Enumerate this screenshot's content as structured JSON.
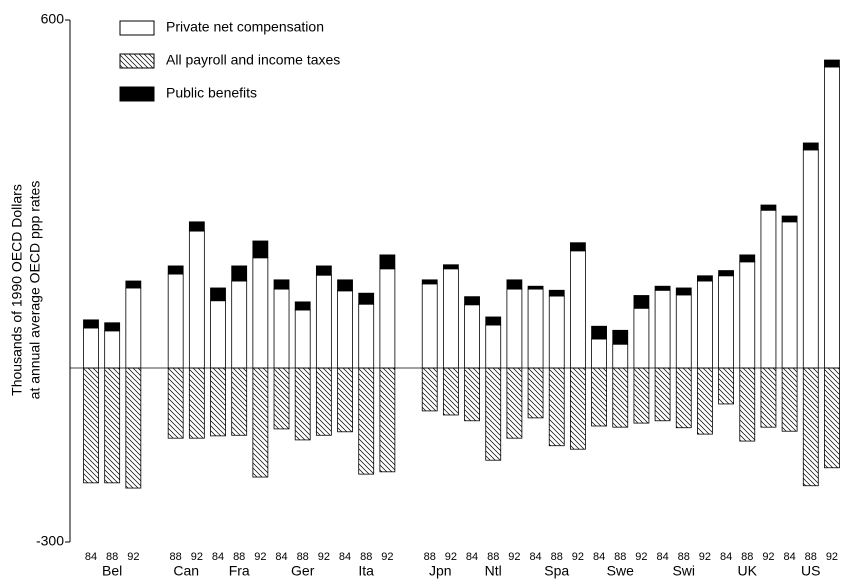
{
  "chart_data": {
    "type": "bar",
    "ylabel": [
      "Thousands of 1990 OECD Dollars",
      "at annual average OECD ppp rates"
    ],
    "groups": [
      {
        "name": "Bel",
        "years": [
          "84",
          "88",
          "92"
        ]
      },
      {
        "name": "Can",
        "years": [
          "88",
          "92"
        ]
      },
      {
        "name": "Fra",
        "years": [
          "84",
          "88",
          "92"
        ]
      },
      {
        "name": "Ger",
        "years": [
          "84",
          "88",
          "92"
        ]
      },
      {
        "name": "Ita",
        "years": [
          "84",
          "88",
          "92"
        ]
      },
      {
        "name": "Jpn",
        "years": [
          "88",
          "92"
        ]
      },
      {
        "name": "Ntl",
        "years": [
          "84",
          "88",
          "92"
        ]
      },
      {
        "name": "Spa",
        "years": [
          "84",
          "88",
          "92"
        ]
      },
      {
        "name": "Swe",
        "years": [
          "84",
          "88",
          "92"
        ]
      },
      {
        "name": "Swi",
        "years": [
          "84",
          "88",
          "92"
        ]
      },
      {
        "name": "UK",
        "years": [
          "84",
          "88",
          "92"
        ]
      },
      {
        "name": "US",
        "years": [
          "84",
          "88",
          "92"
        ]
      }
    ],
    "series": [
      {
        "name": "Private net compensation",
        "color": "#ffffff",
        "pattern": "solid",
        "values": [
          69,
          64,
          138,
          162,
          236,
          116,
          150,
          190,
          136,
          100,
          160,
          133,
          110,
          171,
          145,
          171,
          109,
          74,
          136,
          136,
          124,
          202,
          50,
          41,
          103,
          134,
          126,
          150,
          159,
          183,
          272,
          252,
          376,
          519
        ]
      },
      {
        "name": "All payroll and income taxes",
        "color": "#ffffff",
        "pattern": "hatch",
        "values": [
          -198,
          -198,
          -207,
          -121,
          -121,
          -117,
          -116,
          -188,
          -105,
          -124,
          -116,
          -110,
          -183,
          -179,
          -74,
          -81,
          -91,
          -159,
          -121,
          -86,
          -134,
          -140,
          -100,
          -102,
          -95,
          -91,
          -103,
          -114,
          -62,
          -126,
          -102,
          -109,
          -203,
          -172
        ]
      },
      {
        "name": "Public benefits",
        "color": "#000000",
        "pattern": "solid",
        "values": [
          14,
          14,
          12,
          14,
          16,
          22,
          26,
          29,
          16,
          14,
          16,
          19,
          19,
          24,
          7,
          7,
          14,
          14,
          16,
          5,
          10,
          14,
          22,
          24,
          22,
          7,
          12,
          9,
          9,
          12,
          9,
          10,
          12,
          12
        ]
      }
    ],
    "ylim": [
      -300,
      600
    ],
    "yticks": [
      -300,
      600
    ]
  }
}
